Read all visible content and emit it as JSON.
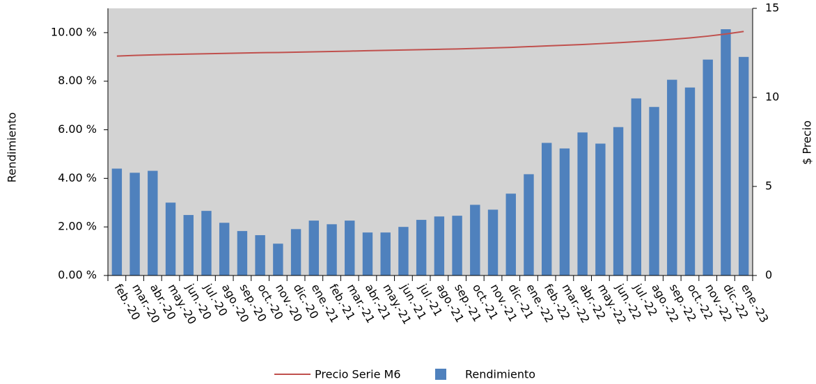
{
  "chart_data": {
    "type": "bar-line",
    "categories": [
      "feb.-20",
      "mar.-20",
      "abr.-20",
      "may.-20",
      "jun.-20",
      "jul.-20",
      "ago.-20",
      "sep.-20",
      "oct.-20",
      "nov.-20",
      "dic.-20",
      "ene.-21",
      "feb.-21",
      "mar.-21",
      "abr.-21",
      "may.-21",
      "jun.-21",
      "jul.-21",
      "ago.-21",
      "sep.-21",
      "oct.-21",
      "nov.-21",
      "dic.-21",
      "ene.-22",
      "feb.-22",
      "mar.-22",
      "abr.-22",
      "may.-22",
      "jun.-22",
      "jul.-22",
      "ago.-22",
      "sep.-22",
      "oct.-22",
      "nov.-22",
      "dic.-22",
      "ene.-23"
    ],
    "series": [
      {
        "name": "Precio Serie M6",
        "type": "line",
        "axis": "y2",
        "color": "#c0504d",
        "values": [
          12.32,
          12.36,
          12.39,
          12.41,
          12.43,
          12.45,
          12.47,
          12.49,
          12.51,
          12.52,
          12.54,
          12.56,
          12.58,
          12.6,
          12.62,
          12.64,
          12.66,
          12.68,
          12.7,
          12.72,
          12.75,
          12.78,
          12.81,
          12.85,
          12.89,
          12.93,
          12.97,
          13.02,
          13.07,
          13.13,
          13.19,
          13.26,
          13.34,
          13.44,
          13.56,
          13.7
        ]
      },
      {
        "name": "Rendimiento",
        "type": "bar",
        "color": "#4f81bd",
        "values": [
          4.4,
          4.23,
          4.31,
          3.0,
          2.49,
          2.66,
          2.17,
          1.83,
          1.66,
          1.31,
          1.91,
          2.26,
          2.11,
          2.26,
          1.77,
          1.77,
          2.0,
          2.29,
          2.43,
          2.46,
          2.91,
          2.71,
          3.37,
          4.17,
          5.46,
          5.23,
          5.89,
          5.43,
          6.11,
          7.29,
          6.94,
          8.06,
          7.74,
          8.89,
          10.14,
          9.0
        ]
      }
    ],
    "y_label": "Rendimiento",
    "y2_label": "$ Precio",
    "ylim": [
      0,
      11
    ],
    "yticks": [
      {
        "value": 0,
        "label": "0.00 %"
      },
      {
        "value": 2,
        "label": "2.00 %"
      },
      {
        "value": 4,
        "label": "4.00 %"
      },
      {
        "value": 6,
        "label": "6.00 %"
      },
      {
        "value": 8,
        "label": "8.00 %"
      },
      {
        "value": 10,
        "label": "10.00 %"
      }
    ],
    "y2lim": [
      0,
      15
    ],
    "y2ticks": [
      0,
      5,
      10,
      15
    ],
    "plot_background": "#d3d3d3",
    "legend": "bottom"
  }
}
